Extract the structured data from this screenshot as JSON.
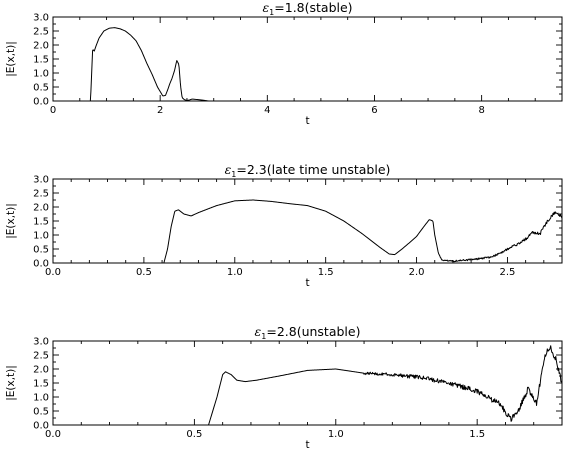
{
  "chart_data": [
    {
      "type": "line",
      "title": {
        "prefix": "ε",
        "subscript": "1",
        "suffix": "=1.8(stable)"
      },
      "xlabel": "t",
      "ylabel": "|E(x,t)|",
      "xlim": [
        0,
        9.5
      ],
      "ylim": [
        0,
        3.0
      ],
      "xticks": [
        0,
        2,
        4,
        6,
        8
      ],
      "xtick_labels": [
        "0",
        "2",
        "4",
        "6",
        "8"
      ],
      "x_minor_step": 0.5,
      "yticks": [
        0,
        0.5,
        1.0,
        1.5,
        2.0,
        2.5,
        3.0
      ],
      "ytick_labels": [
        "0.0",
        "0.5",
        "1.0",
        "1.5",
        "2.0",
        "2.5",
        "3.0"
      ],
      "y_minor_step": 0.25,
      "noise": [],
      "series": [
        {
          "x": [
            0,
            0.7,
            0.74,
            0.77,
            0.8,
            0.86,
            0.95,
            1.05,
            1.15,
            1.25,
            1.35,
            1.45,
            1.55,
            1.65,
            1.75,
            1.85,
            1.95,
            2.05,
            2.1,
            2.15,
            2.18,
            2.22,
            2.27,
            2.31,
            2.35,
            2.38,
            2.41,
            2.45,
            2.5,
            2.55,
            2.6,
            2.7,
            2.8,
            2.9,
            9.5
          ],
          "y": [
            0,
            0,
            1.85,
            1.78,
            1.95,
            2.25,
            2.5,
            2.6,
            2.62,
            2.58,
            2.5,
            2.35,
            2.15,
            1.8,
            1.35,
            0.95,
            0.5,
            0.18,
            0.2,
            0.45,
            0.62,
            0.8,
            1.1,
            1.45,
            1.3,
            0.55,
            0.12,
            0.05,
            0.02,
            0.04,
            0.07,
            0.05,
            0.03,
            0,
            0
          ]
        }
      ]
    },
    {
      "type": "line",
      "title": {
        "prefix": "ε",
        "subscript": "1",
        "suffix": "=2.3(late time unstable)"
      },
      "xlabel": "t",
      "ylabel": "|E(x,t)|",
      "xlim": [
        0,
        2.8
      ],
      "ylim": [
        0,
        3.0
      ],
      "xticks": [
        0,
        0.5,
        1.0,
        1.5,
        2.0,
        2.5
      ],
      "xtick_labels": [
        "0.0",
        "0.5",
        "1.0",
        "1.5",
        "2.0",
        "2.5"
      ],
      "x_minor_step": 0.1,
      "yticks": [
        0,
        0.5,
        1.0,
        1.5,
        2.0,
        2.5,
        3.0
      ],
      "ytick_labels": [
        "0.0",
        "0.5",
        "1.0",
        "1.5",
        "2.0",
        "2.5",
        "3.0"
      ],
      "y_minor_step": 0.25,
      "noise": [
        {
          "from": 2.13,
          "to": 2.8,
          "amp": 0.06
        }
      ],
      "series": [
        {
          "x": [
            0,
            0.61,
            0.63,
            0.65,
            0.67,
            0.69,
            0.72,
            0.76,
            0.8,
            0.9,
            1.0,
            1.1,
            1.2,
            1.3,
            1.4,
            1.5,
            1.6,
            1.7,
            1.8,
            1.85,
            1.88,
            1.92,
            1.96,
            2.0,
            2.04,
            2.07,
            2.09,
            2.1,
            2.12,
            2.14,
            2.2,
            2.3,
            2.4,
            2.45,
            2.5,
            2.55,
            2.6,
            2.64,
            2.68,
            2.72,
            2.76,
            2.8
          ],
          "y": [
            0,
            0,
            0.5,
            1.3,
            1.85,
            1.9,
            1.75,
            1.68,
            1.8,
            2.05,
            2.22,
            2.25,
            2.2,
            2.12,
            2.05,
            1.85,
            1.5,
            1.05,
            0.55,
            0.32,
            0.3,
            0.5,
            0.72,
            0.95,
            1.3,
            1.55,
            1.5,
            1.0,
            0.35,
            0.1,
            0.07,
            0.12,
            0.2,
            0.32,
            0.5,
            0.65,
            0.85,
            1.1,
            1.05,
            1.5,
            1.8,
            1.65
          ]
        }
      ]
    },
    {
      "type": "line",
      "title": {
        "prefix": "ε",
        "subscript": "1",
        "suffix": "=2.8(unstable)"
      },
      "xlabel": "t",
      "ylabel": "|E(x,t)|",
      "xlim": [
        0,
        1.8
      ],
      "ylim": [
        0,
        3.0
      ],
      "xticks": [
        0,
        0.5,
        1.0,
        1.5
      ],
      "xtick_labels": [
        "0.0",
        "0.5",
        "1.0",
        "1.5"
      ],
      "x_minor_step": 0.1,
      "yticks": [
        0,
        0.5,
        1.0,
        1.5,
        2.0,
        2.5,
        3.0
      ],
      "ytick_labels": [
        "0.0",
        "0.5",
        "1.0",
        "1.5",
        "2.0",
        "2.5",
        "3.0"
      ],
      "y_minor_step": 0.25,
      "noise": [
        {
          "from": 1.1,
          "to": 1.8,
          "amp": 0.12
        }
      ],
      "series": [
        {
          "x": [
            0,
            0.55,
            0.58,
            0.6,
            0.61,
            0.63,
            0.65,
            0.68,
            0.72,
            0.8,
            0.9,
            1.0,
            1.1,
            1.2,
            1.3,
            1.4,
            1.5,
            1.58,
            1.62,
            1.65,
            1.68,
            1.71,
            1.74,
            1.76,
            1.78,
            1.8
          ],
          "y": [
            0,
            0,
            1.0,
            1.8,
            1.9,
            1.8,
            1.6,
            1.55,
            1.6,
            1.75,
            1.95,
            2.0,
            1.85,
            1.8,
            1.7,
            1.5,
            1.2,
            0.75,
            0.2,
            0.6,
            1.3,
            0.8,
            2.5,
            2.8,
            2.3,
            1.5
          ]
        }
      ]
    }
  ]
}
